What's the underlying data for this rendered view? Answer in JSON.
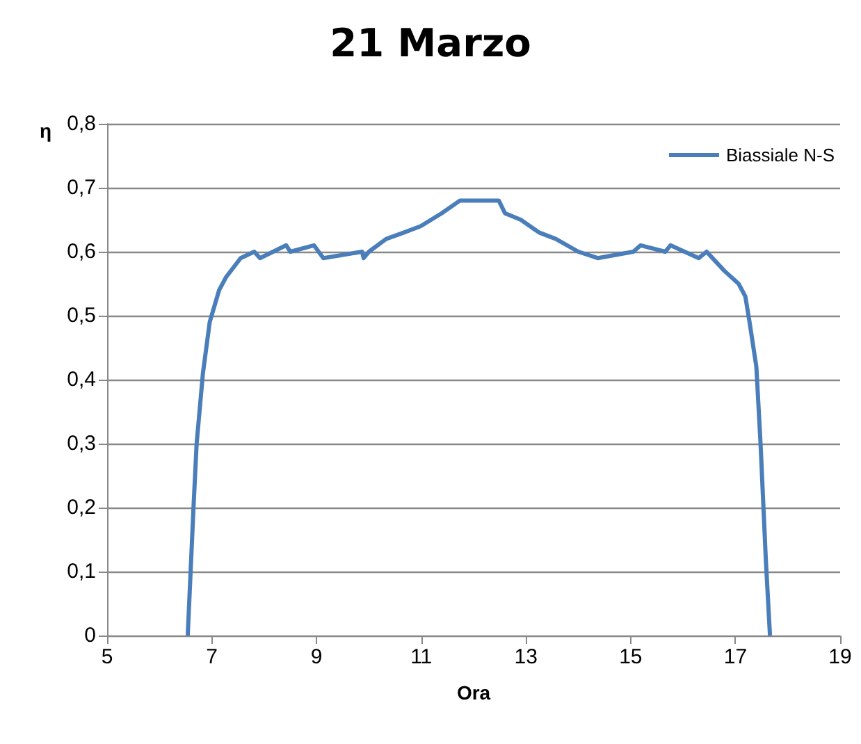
{
  "chart_data": {
    "type": "line",
    "title": "21 Marzo",
    "xlabel": "Ora",
    "ylabel": "η",
    "xlim": [
      5,
      19
    ],
    "xticks": [
      5,
      7,
      9,
      11,
      13,
      15,
      17,
      19
    ],
    "ylim": [
      0,
      0.8
    ],
    "yticks": [
      0,
      {
        "value": 0.1,
        "label": "0,1"
      },
      {
        "value": 0.2,
        "label": "0,2"
      },
      {
        "value": 0.3,
        "label": "0,3"
      },
      {
        "value": 0.4,
        "label": "0,4"
      },
      {
        "value": 0.5,
        "label": "0,5"
      },
      {
        "value": 0.6,
        "label": "0,6"
      },
      {
        "value": 0.7,
        "label": "0,7"
      },
      {
        "value": 0.8,
        "label": "0,8"
      }
    ],
    "grid": "y",
    "legend": "top right",
    "series": [
      {
        "name": "Biassiale N-S",
        "color": "#4a7ebb",
        "x": [
          6.54,
          6.65,
          6.71,
          6.83,
          6.96,
          7.14,
          7.27,
          7.55,
          7.81,
          7.92,
          8.42,
          8.5,
          8.95,
          9.13,
          9.87,
          9.9,
          10.0,
          10.33,
          10.67,
          10.99,
          11.39,
          11.74,
          12.48,
          12.6,
          12.9,
          13.25,
          13.57,
          14.0,
          14.37,
          15.05,
          15.19,
          15.66,
          15.76,
          16.3,
          16.45,
          16.79,
          17.06,
          17.19,
          17.27,
          17.4,
          17.48,
          17.58,
          17.66
        ],
        "values": [
          0,
          0.2,
          0.3,
          0.41,
          0.49,
          0.54,
          0.56,
          0.59,
          0.6,
          0.59,
          0.61,
          0.6,
          0.61,
          0.59,
          0.6,
          0.59,
          0.6,
          0.62,
          0.63,
          0.64,
          0.66,
          0.68,
          0.68,
          0.66,
          0.65,
          0.63,
          0.62,
          0.6,
          0.59,
          0.6,
          0.61,
          0.6,
          0.61,
          0.59,
          0.6,
          0.57,
          0.55,
          0.53,
          0.49,
          0.42,
          0.3,
          0.12,
          0
        ]
      }
    ]
  }
}
